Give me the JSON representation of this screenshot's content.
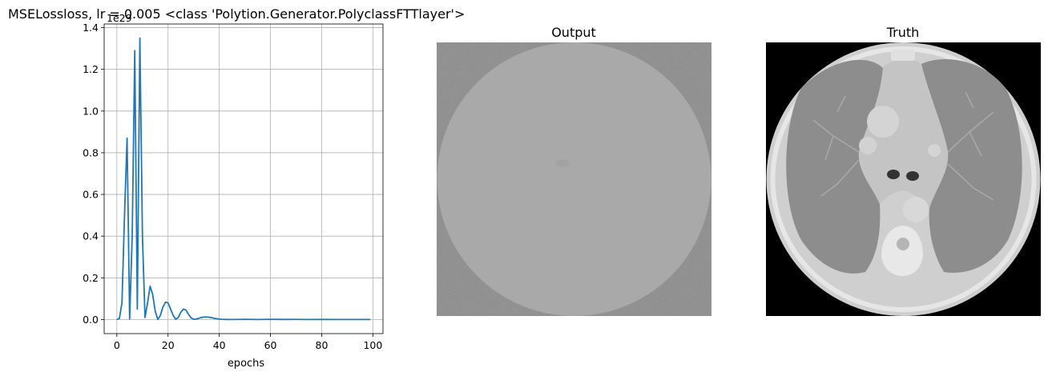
{
  "figure": {
    "title": "MSELossloss, lr = 0.005 <class 'Polytion.Generator.PolyclassFTTlayer'>"
  },
  "chart_data": {
    "type": "line",
    "xlabel": "epochs",
    "ylabel": "",
    "y_scale_label": "1e29",
    "xlim": [
      -4.95,
      103.95
    ],
    "ylim": [
      -0.0675,
      1.4175
    ],
    "x_ticks": [
      0,
      20,
      40,
      60,
      80,
      100
    ],
    "y_ticks": [
      0.0,
      0.2,
      0.4,
      0.6,
      0.8,
      1.0,
      1.2,
      1.4
    ],
    "grid": true,
    "series_color": "#1f77b4",
    "series": [
      {
        "x": [
          0,
          1,
          2,
          3,
          4,
          5,
          6,
          7,
          8,
          9,
          10,
          11,
          12,
          13,
          14,
          15,
          16,
          17,
          18,
          19,
          20,
          21,
          22,
          23,
          24,
          25,
          26,
          27,
          28,
          29,
          30,
          31,
          32,
          33,
          34,
          35,
          36,
          37,
          38,
          39,
          40,
          41,
          42,
          43,
          44,
          45,
          50,
          55,
          60,
          65,
          70,
          75,
          80,
          85,
          90,
          95,
          99
        ],
        "y": [
          0.0,
          0.005,
          0.08,
          0.5,
          0.87,
          0.002,
          0.4,
          1.29,
          0.05,
          1.35,
          0.4,
          0.01,
          0.08,
          0.16,
          0.12,
          0.04,
          0.0,
          0.02,
          0.06,
          0.083,
          0.08,
          0.05,
          0.02,
          0.001,
          0.01,
          0.035,
          0.05,
          0.045,
          0.025,
          0.008,
          0.001,
          0.002,
          0.006,
          0.01,
          0.012,
          0.012,
          0.011,
          0.009,
          0.006,
          0.004,
          0.002,
          0.001,
          0.0005,
          0.0003,
          0.0002,
          0.0001,
          0.001,
          0.0002,
          0.001,
          0.0003,
          0.0005,
          0.0002,
          0.0003,
          0.0001,
          0.0002,
          0.0001,
          0.0
        ]
      }
    ]
  },
  "panels": {
    "output": {
      "title": "Output"
    },
    "truth": {
      "title": "Truth"
    }
  }
}
